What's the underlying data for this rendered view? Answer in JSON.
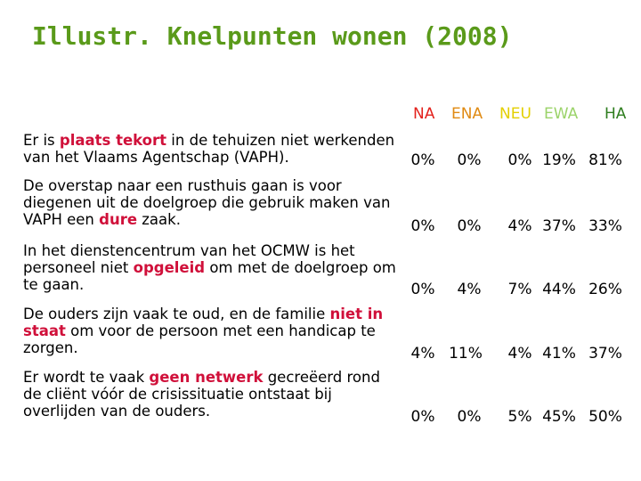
{
  "title": "Illustr. Knelpunten wonen (2008)",
  "colors": {
    "title": "#5a9a1a",
    "highlight": "#d0103a",
    "NA": "#e3211c",
    "ENA": "#e08a12",
    "NEU": "#e3cf00",
    "EWA": "#9bd36a",
    "HA": "#2e7d1e"
  },
  "headers": [
    "NA",
    "ENA",
    "NEU",
    "EWA",
    "HA"
  ],
  "rows": [
    {
      "before": "Er is ",
      "highlight": "plaats tekort",
      "after": " in de tehuizen niet werkenden van het Vlaams Agentschap (VAPH).",
      "values": [
        "0%",
        "0%",
        "0%",
        "19%",
        "81%"
      ]
    },
    {
      "before": "De overstap naar een rusthuis gaan is voor diegenen uit de  doelgroep die gebruik maken van VAPH een ",
      "highlight": "dure",
      "after": " zaak.",
      "values": [
        "0%",
        "0%",
        "4%",
        "37%",
        "33%"
      ]
    },
    {
      "before": "In het dienstencentrum van het OCMW is het personeel niet ",
      "highlight": "opgeleid",
      "after": " om met de doelgroep om te gaan.",
      "values": [
        "0%",
        "4%",
        "7%",
        "44%",
        "26%"
      ]
    },
    {
      "before": "De ouders zijn vaak te oud, en de familie ",
      "highlight": "niet in staat",
      "after": " om voor de persoon met een handicap te zorgen.",
      "values": [
        "4%",
        "11%",
        "4%",
        "41%",
        "37%"
      ]
    },
    {
      "before": "Er wordt te vaak ",
      "highlight": "geen netwerk",
      "after": " gecreëerd rond de cliënt vóór de crisissituatie ontstaat bij overlijden van de ouders.",
      "values": [
        "0%",
        "0%",
        "5%",
        "45%",
        "50%"
      ]
    }
  ]
}
